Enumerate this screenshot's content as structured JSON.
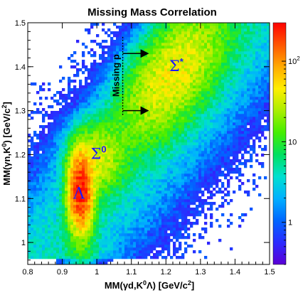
{
  "chart_data": {
    "type": "heatmap",
    "title": "Missing Mass Correlation",
    "xlabel_parts": [
      "MM(",
      "γ",
      "d,K",
      "0",
      "Λ) [GeV/c",
      "2",
      "]"
    ],
    "ylabel_parts": [
      "MM(",
      "γ",
      "n,K",
      "0",
      ") [GeV/c",
      "2",
      "]"
    ],
    "xlim": [
      0.8,
      1.5
    ],
    "ylim": [
      0.95,
      1.5
    ],
    "x_ticks": [
      0.8,
      0.9,
      1.0,
      1.1,
      1.2,
      1.3,
      1.4,
      1.5
    ],
    "x_tick_labels": [
      "0.8",
      "0.9",
      "1",
      "1.1",
      "1.2",
      "1.3",
      "1.4",
      "1.5"
    ],
    "y_ticks": [
      1.0,
      1.1,
      1.2,
      1.3,
      1.4,
      1.5
    ],
    "y_tick_labels": [
      "1",
      "1.1",
      "1.2",
      "1.3",
      "1.4",
      "1.5"
    ],
    "color_scale": "log",
    "color_range": [
      0.3,
      300
    ],
    "colorbar_ticks": [
      1,
      10,
      100
    ],
    "colorbar_tick_labels": [
      "1",
      "10",
      "10",
      "2"
    ],
    "clusters": [
      {
        "name": "Λ",
        "x": 0.953,
        "y": 1.118,
        "peak_count": 250
      },
      {
        "name": "Σ0",
        "x": 1.0,
        "y": 1.19,
        "peak_count": 30
      },
      {
        "name": "Σ*",
        "x": 1.22,
        "y": 1.385,
        "peak_count": 40
      }
    ],
    "annotations": [
      {
        "id": "lambda",
        "text": "Λ",
        "x": 0.948,
        "y": 1.1
      },
      {
        "id": "sigma0",
        "text": "Σ",
        "sup": "0",
        "x": 1.005,
        "y": 1.19
      },
      {
        "id": "sigmastar",
        "text": "Σ",
        "sup": "*",
        "x": 1.23,
        "y": 1.39
      },
      {
        "id": "missing",
        "text": "Missing  p",
        "sup": "",
        "x": 1.065,
        "y": 1.38
      },
      {
        "id": "cut-line",
        "type": "dashed-vertical",
        "x": 1.075,
        "y_range": [
          1.29,
          1.47
        ]
      },
      {
        "id": "arrow-upper",
        "type": "arrow",
        "x_from": 1.075,
        "x_to": 1.145,
        "y": 1.43
      },
      {
        "id": "arrow-lower",
        "type": "arrow",
        "x_from": 1.075,
        "x_to": 1.145,
        "y": 1.3
      }
    ],
    "palette": [
      "#5b00d6",
      "#2b2bff",
      "#0066ff",
      "#00b0ff",
      "#00e0d0",
      "#00e060",
      "#44ee00",
      "#aaee00",
      "#ffee00",
      "#ffaa00",
      "#ff5500",
      "#ff0000"
    ]
  }
}
